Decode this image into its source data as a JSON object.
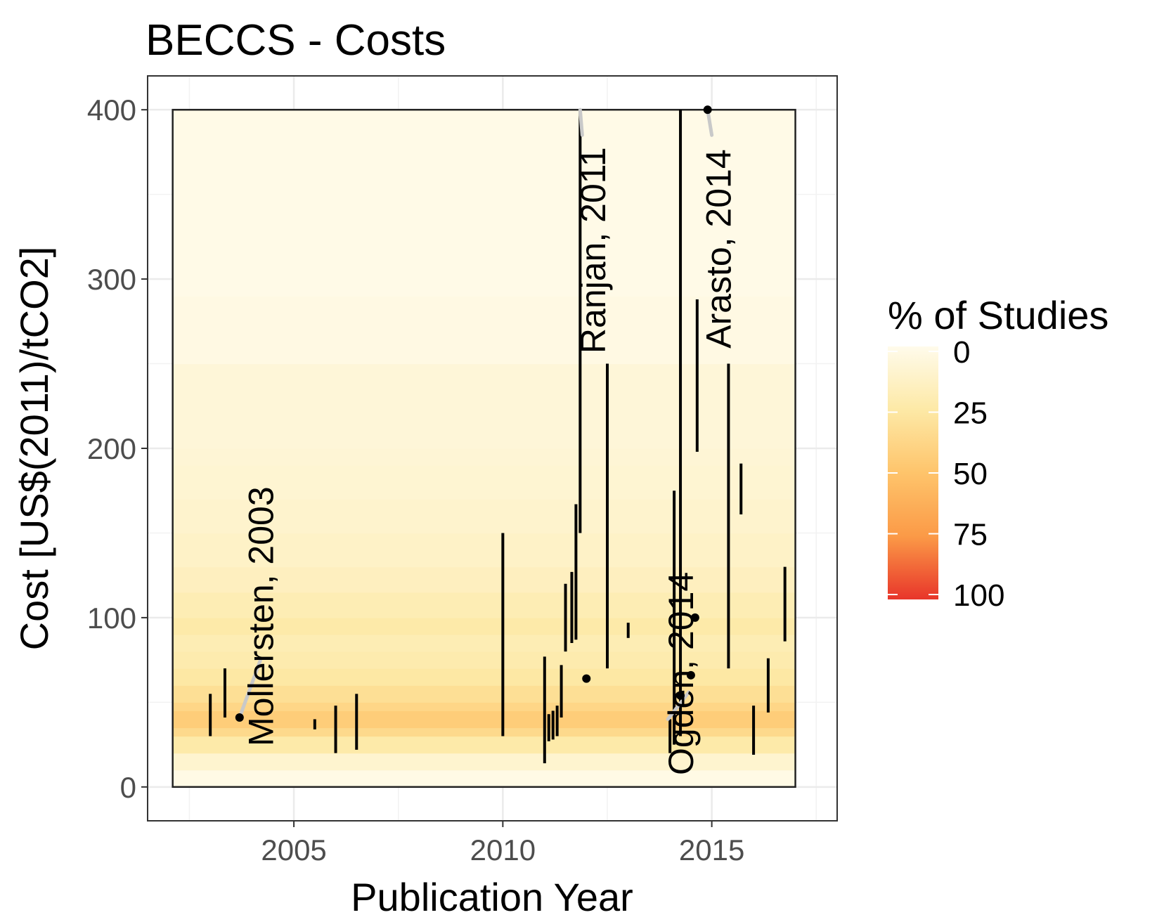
{
  "chart_data": {
    "type": "heatmap",
    "title": "BECCS - Costs",
    "xlabel": "Publication Year",
    "ylabel": "Cost [US$(2011)/tCO2]",
    "xlim": [
      2001.5,
      2018
    ],
    "ylim": [
      -20,
      420
    ],
    "x_ticks": [
      2005,
      2010,
      2015
    ],
    "x_minor_ticks": [
      2002.5,
      2007.5,
      2012.5,
      2017.5
    ],
    "y_ticks": [
      0,
      100,
      200,
      300,
      400
    ],
    "y_minor_ticks": [
      50,
      150,
      250,
      350
    ],
    "grid": true,
    "legend": {
      "title": "% of Studies",
      "position": "right",
      "ticks": [
        "0",
        "25",
        "50",
        "75",
        "100"
      ],
      "colors": [
        "#fffbeb",
        "#fde9a6",
        "#fec46b",
        "#fb9a47",
        "#e8352a"
      ]
    },
    "heat_region": {
      "x": [
        2002.1,
        2017.0
      ],
      "y": [
        0,
        400
      ]
    },
    "heat_bands": [
      {
        "y": [
          0,
          10
        ],
        "pct": 2
      },
      {
        "y": [
          10,
          20
        ],
        "pct": 10
      },
      {
        "y": [
          20,
          30
        ],
        "pct": 24
      },
      {
        "y": [
          30,
          35
        ],
        "pct": 36
      },
      {
        "y": [
          35,
          45
        ],
        "pct": 44
      },
      {
        "y": [
          45,
          50
        ],
        "pct": 38
      },
      {
        "y": [
          50,
          60
        ],
        "pct": 32
      },
      {
        "y": [
          60,
          70
        ],
        "pct": 26
      },
      {
        "y": [
          70,
          80
        ],
        "pct": 22
      },
      {
        "y": [
          80,
          90
        ],
        "pct": 20
      },
      {
        "y": [
          90,
          100
        ],
        "pct": 24
      },
      {
        "y": [
          100,
          115
        ],
        "pct": 20
      },
      {
        "y": [
          115,
          130
        ],
        "pct": 16
      },
      {
        "y": [
          130,
          150
        ],
        "pct": 13
      },
      {
        "y": [
          150,
          170
        ],
        "pct": 11
      },
      {
        "y": [
          170,
          190
        ],
        "pct": 9
      },
      {
        "y": [
          190,
          200
        ],
        "pct": 8
      },
      {
        "y": [
          200,
          250
        ],
        "pct": 7
      },
      {
        "y": [
          250,
          290
        ],
        "pct": 3
      },
      {
        "y": [
          290,
          400
        ],
        "pct": 1.5
      }
    ],
    "ranges": [
      {
        "x": 2003.0,
        "min": 30,
        "max": 55
      },
      {
        "x": 2003.35,
        "min": 41,
        "max": 70
      },
      {
        "x": 2005.5,
        "min": 34,
        "max": 40
      },
      {
        "x": 2006.0,
        "min": 20,
        "max": 48
      },
      {
        "x": 2006.5,
        "min": 22,
        "max": 55
      },
      {
        "x": 2010.0,
        "min": 30,
        "max": 150
      },
      {
        "x": 2011.0,
        "min": 14,
        "max": 77
      },
      {
        "x": 2011.1,
        "min": 27,
        "max": 43
      },
      {
        "x": 2011.2,
        "min": 28,
        "max": 45
      },
      {
        "x": 2011.3,
        "min": 30,
        "max": 48
      },
      {
        "x": 2011.4,
        "min": 41,
        "max": 72
      },
      {
        "x": 2011.5,
        "min": 80,
        "max": 120
      },
      {
        "x": 2011.65,
        "min": 85,
        "max": 127
      },
      {
        "x": 2011.75,
        "min": 87,
        "max": 167
      },
      {
        "x": 2011.85,
        "min": 150,
        "max": 400
      },
      {
        "x": 2012.5,
        "min": 70,
        "max": 250
      },
      {
        "x": 2013.0,
        "min": 88,
        "max": 97
      },
      {
        "x": 2014.0,
        "min": 20,
        "max": 40
      },
      {
        "x": 2014.1,
        "min": 25,
        "max": 175
      },
      {
        "x": 2014.25,
        "min": 30,
        "max": 400
      },
      {
        "x": 2014.65,
        "min": 198,
        "max": 288
      },
      {
        "x": 2015.4,
        "min": 70,
        "max": 250
      },
      {
        "x": 2015.7,
        "min": 161,
        "max": 191
      },
      {
        "x": 2016.0,
        "min": 19,
        "max": 48
      },
      {
        "x": 2016.35,
        "min": 44,
        "max": 76
      },
      {
        "x": 2016.75,
        "min": 86,
        "max": 130
      }
    ],
    "points": [
      {
        "x": 2003.7,
        "y": 41
      },
      {
        "x": 2012.0,
        "y": 64
      },
      {
        "x": 2014.25,
        "y": 54
      },
      {
        "x": 2014.5,
        "y": 66
      },
      {
        "x": 2014.6,
        "y": 100
      },
      {
        "x": 2014.9,
        "y": 400
      }
    ],
    "annotations": [
      {
        "text": "Mollersten, 2003",
        "x": 2004.5,
        "y": 24,
        "point_x": 2003.7,
        "point_y": 41,
        "line_end_x": 2004.2,
        "line_end_y": 75
      },
      {
        "text": "Ranjan, 2011",
        "x": 2012.45,
        "y": 256,
        "point_x": 2011.85,
        "point_y": 400,
        "line_end_x": 2011.9,
        "line_end_y": 385
      },
      {
        "text": "Ogden, 2014",
        "x": 2014.55,
        "y": 7,
        "point_x": 2014.45,
        "point_y": 56,
        "line_end_x": 2013.95,
        "line_end_y": 40
      },
      {
        "text": "Arasto, 2014",
        "x": 2015.45,
        "y": 259,
        "point_x": 2014.9,
        "point_y": 400,
        "line_end_x": 2015.0,
        "line_end_y": 385
      }
    ]
  }
}
